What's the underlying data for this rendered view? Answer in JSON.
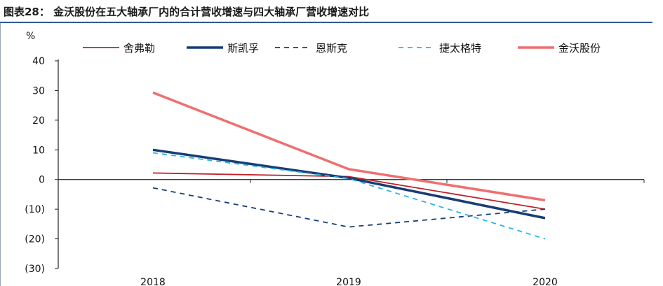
{
  "figure": {
    "title": "图表28：  金沃股份在五大轴承厂内的合计营收增速与四大轴承厂营收增速对比"
  },
  "chart_data": {
    "type": "line",
    "y_unit": "%",
    "x": [
      "2018",
      "2019",
      "2020"
    ],
    "ylim": [
      -30,
      40
    ],
    "yticks": [
      "40",
      "30",
      "20",
      "10",
      "0",
      "(10)",
      "(20)",
      "(30)"
    ],
    "grid": false,
    "legend_position": "top",
    "series": [
      {
        "name": "舍弗勒",
        "values": [
          2.2,
          1.0,
          -10.0
        ],
        "color": "#c0202a",
        "style": "solid",
        "weight": "thin"
      },
      {
        "name": "斯凯孚",
        "values": [
          10.0,
          0.5,
          -13.0
        ],
        "color": "#173d74",
        "style": "solid",
        "weight": "thick"
      },
      {
        "name": "恩斯克",
        "values": [
          -2.8,
          -16.0,
          -10.0
        ],
        "color": "#173d74",
        "style": "dashed",
        "weight": "thin"
      },
      {
        "name": "捷太格特",
        "values": [
          9.0,
          0.3,
          -20.0
        ],
        "color": "#27b5e6",
        "style": "dashed",
        "weight": "thin"
      },
      {
        "name": "金沃股份",
        "values": [
          29.3,
          3.5,
          -7.0
        ],
        "color": "#ef6f6f",
        "style": "solid",
        "weight": "thick"
      }
    ]
  }
}
